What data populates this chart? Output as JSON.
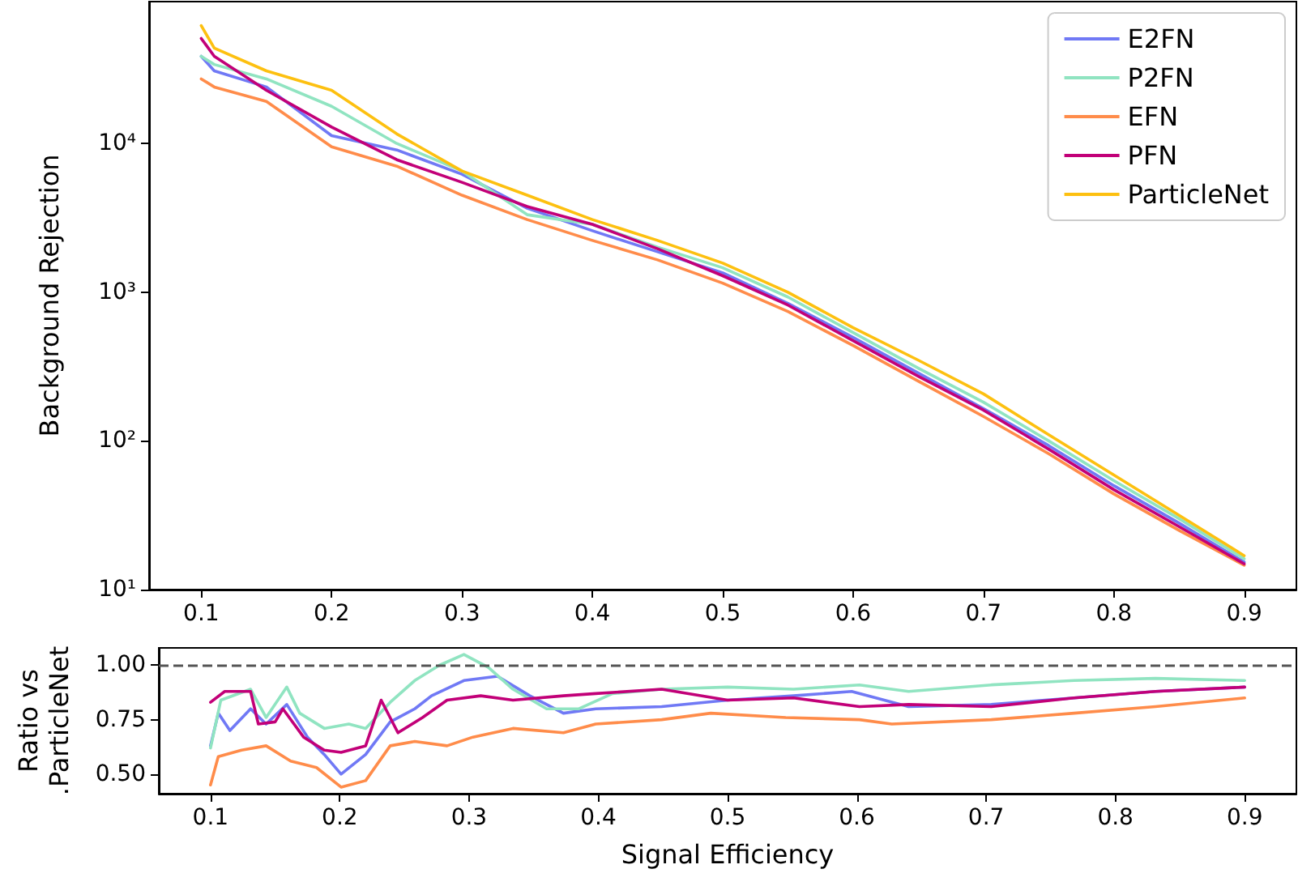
{
  "chart_data": [
    {
      "type": "line",
      "ylabel": "Background Rejection",
      "log": "y",
      "xlim": [
        0.06,
        0.94
      ],
      "ylim": [
        10,
        90000
      ],
      "xticks": [
        0.1,
        0.2,
        0.3,
        0.4,
        0.5,
        0.6,
        0.7,
        0.8,
        0.9
      ],
      "yticks": [
        {
          "value": 10,
          "label": "10¹"
        },
        {
          "value": 100,
          "label": "10²"
        },
        {
          "value": 1000,
          "label": "10³"
        },
        {
          "value": 10000,
          "label": "10⁴"
        }
      ],
      "legend": "top right",
      "x": [
        0.1,
        0.11,
        0.15,
        0.2,
        0.25,
        0.3,
        0.35,
        0.4,
        0.45,
        0.5,
        0.55,
        0.6,
        0.65,
        0.7,
        0.75,
        0.8,
        0.85,
        0.9
      ],
      "series": [
        {
          "name": "E2FN",
          "color": "#7079f5",
          "values": [
            38600,
            30800,
            24000,
            11300,
            9050,
            6210,
            3670,
            2590,
            1870,
            1350,
            840,
            497,
            286,
            165,
            93,
            50,
            28,
            15.3
          ]
        },
        {
          "name": "P2FN",
          "color": "#90e4c1",
          "values": [
            38600,
            34000,
            27200,
            17800,
            10000,
            6530,
            3320,
            2860,
            2010,
            1460,
            928,
            535,
            308,
            182,
            100,
            54,
            30,
            16.1
          ]
        },
        {
          "name": "EFN",
          "color": "#ff8c4a",
          "values": [
            27200,
            24000,
            19200,
            9510,
            7040,
            4490,
            3080,
            2230,
            1650,
            1150,
            741,
            438,
            252,
            146,
            82,
            44,
            25,
            14.6
          ]
        },
        {
          "name": "PFN",
          "color": "#c20078",
          "values": [
            50900,
            38600,
            22800,
            12900,
            7780,
            5480,
            3770,
            2860,
            1960,
            1290,
            819,
            472,
            272,
            161,
            88,
            47,
            26.5,
            14.9
          ]
        },
        {
          "name": "ParticleNet",
          "color": "#fdc010",
          "values": [
            62100,
            43800,
            30800,
            22800,
            11600,
            6530,
            4490,
            3080,
            2230,
            1570,
            1000,
            577,
            349,
            207,
            110,
            59,
            31.6,
            16.9
          ]
        }
      ]
    },
    {
      "type": "line",
      "xlabel": "Signal Efficiency",
      "ylabel": "Ratio vs\n.ParticleNet",
      "xlim": [
        0.06,
        0.94
      ],
      "ylim": [
        0.41,
        1.08
      ],
      "xticks": [
        0.1,
        0.2,
        0.3,
        0.4,
        0.5,
        0.6,
        0.7,
        0.8,
        0.9
      ],
      "yticks": [
        {
          "value": 0.5,
          "label": "0.50"
        },
        {
          "value": 0.75,
          "label": "0.75"
        },
        {
          "value": 1,
          "label": "1.00"
        }
      ],
      "ref_lines": [
        {
          "axis": "y",
          "value": 1,
          "color": "#555555",
          "line_style": "dashed"
        }
      ],
      "series": [
        {
          "color": "#7079f5",
          "x": [
            0.1,
            0.106,
            0.115,
            0.131,
            0.143,
            0.159,
            0.175,
            0.188,
            0.201,
            0.22,
            0.239,
            0.258,
            0.271,
            0.296,
            0.322,
            0.347,
            0.373,
            0.398,
            0.449,
            0.5,
            0.551,
            0.596,
            0.64,
            0.704,
            0.768,
            0.831,
            0.9
          ],
          "values": [
            0.63,
            0.78,
            0.7,
            0.8,
            0.73,
            0.82,
            0.67,
            0.59,
            0.5,
            0.59,
            0.74,
            0.8,
            0.86,
            0.93,
            0.95,
            0.86,
            0.78,
            0.8,
            0.81,
            0.84,
            0.86,
            0.88,
            0.81,
            0.82,
            0.85,
            0.88,
            0.9
          ]
        },
        {
          "color": "#90e4c1",
          "x": [
            0.1,
            0.108,
            0.131,
            0.143,
            0.159,
            0.169,
            0.188,
            0.207,
            0.22,
            0.239,
            0.258,
            0.277,
            0.296,
            0.315,
            0.334,
            0.36,
            0.385,
            0.411,
            0.449,
            0.5,
            0.551,
            0.602,
            0.64,
            0.704,
            0.768,
            0.831,
            0.9
          ],
          "values": [
            0.62,
            0.84,
            0.89,
            0.76,
            0.9,
            0.78,
            0.71,
            0.73,
            0.71,
            0.83,
            0.93,
            1.0,
            1.05,
            0.99,
            0.89,
            0.8,
            0.8,
            0.87,
            0.89,
            0.9,
            0.89,
            0.91,
            0.88,
            0.91,
            0.93,
            0.94,
            0.93
          ]
        },
        {
          "color": "#ff8c4a",
          "x": [
            0.1,
            0.106,
            0.124,
            0.143,
            0.162,
            0.182,
            0.201,
            0.22,
            0.239,
            0.258,
            0.283,
            0.303,
            0.334,
            0.373,
            0.398,
            0.449,
            0.487,
            0.545,
            0.602,
            0.627,
            0.704,
            0.768,
            0.831,
            0.9
          ],
          "values": [
            0.45,
            0.58,
            0.61,
            0.63,
            0.56,
            0.53,
            0.44,
            0.47,
            0.63,
            0.65,
            0.63,
            0.67,
            0.71,
            0.69,
            0.73,
            0.75,
            0.78,
            0.76,
            0.75,
            0.73,
            0.75,
            0.78,
            0.81,
            0.85
          ]
        },
        {
          "color": "#c20078",
          "x": [
            0.1,
            0.111,
            0.131,
            0.137,
            0.15,
            0.156,
            0.172,
            0.188,
            0.201,
            0.22,
            0.232,
            0.245,
            0.264,
            0.283,
            0.309,
            0.334,
            0.373,
            0.398,
            0.449,
            0.5,
            0.551,
            0.602,
            0.64,
            0.704,
            0.768,
            0.831,
            0.9
          ],
          "values": [
            0.83,
            0.88,
            0.88,
            0.73,
            0.74,
            0.8,
            0.67,
            0.61,
            0.6,
            0.63,
            0.84,
            0.69,
            0.76,
            0.84,
            0.86,
            0.84,
            0.86,
            0.87,
            0.89,
            0.84,
            0.85,
            0.81,
            0.82,
            0.81,
            0.85,
            0.88,
            0.9
          ]
        }
      ]
    }
  ]
}
